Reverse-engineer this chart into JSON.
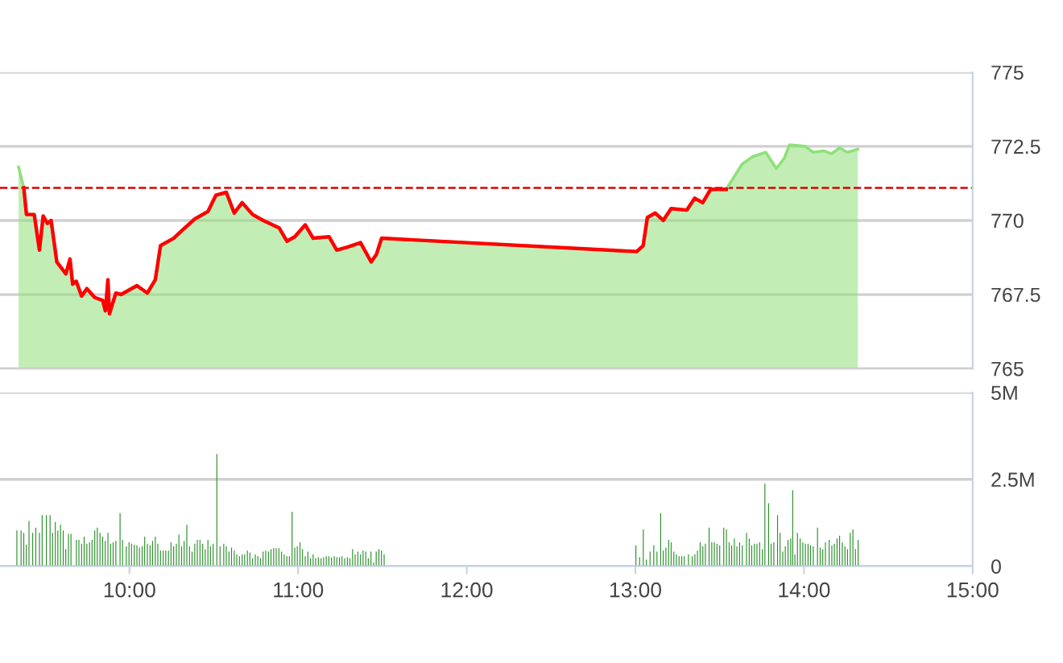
{
  "chart_data": [
    {
      "type": "area",
      "xlim": [
        9.232,
        15
      ],
      "ylim": [
        765,
        775
      ],
      "yticks": [
        765,
        767.5,
        770,
        772.5,
        775
      ],
      "tick_labels": "y",
      "grid": "y",
      "ref_lines": [
        {
          "axis": "y",
          "value": 771.1,
          "color": "#dd0000",
          "line_style": "dashed"
        }
      ],
      "series": [
        {
          "type": "area",
          "color": "#8fe07a",
          "x": [
            9.342,
            9.373,
            9.389,
            9.435,
            9.466,
            9.488,
            9.513,
            9.535,
            9.569,
            9.623,
            9.647,
            9.663,
            9.684,
            9.716,
            9.747,
            9.794,
            9.841,
            9.857,
            9.872,
            9.881,
            9.919,
            9.95,
            9.997,
            10.044,
            10.106,
            10.153,
            10.184,
            10.262,
            10.309,
            10.387,
            10.465,
            10.512,
            10.574,
            10.621,
            10.668,
            10.73,
            10.793,
            10.887,
            10.934,
            10.98,
            11.042,
            11.089,
            11.183,
            11.229,
            11.292,
            11.37,
            11.433,
            11.464,
            11.495,
            13.008,
            13.046,
            13.071,
            13.118,
            13.165,
            13.212,
            13.305,
            13.352,
            13.399,
            13.446,
            13.539,
            13.633,
            13.695,
            13.773,
            13.836,
            13.883,
            13.914,
            14.007,
            14.054,
            14.116,
            14.163,
            14.211,
            14.257,
            14.319
          ],
          "values": [
            771.8,
            771.1,
            770.2,
            770.2,
            769.0,
            770.15,
            769.9,
            770.0,
            768.6,
            768.2,
            768.7,
            767.85,
            767.95,
            767.45,
            767.7,
            767.4,
            767.3,
            766.95,
            768.0,
            766.85,
            767.55,
            767.5,
            767.65,
            767.8,
            767.55,
            768.0,
            769.15,
            769.4,
            769.65,
            770.05,
            770.3,
            770.85,
            770.95,
            770.25,
            770.6,
            770.2,
            770.0,
            769.75,
            769.3,
            769.45,
            769.85,
            769.4,
            769.45,
            769.0,
            769.1,
            769.25,
            768.6,
            768.85,
            769.4,
            768.95,
            769.15,
            770.1,
            770.25,
            770.0,
            770.4,
            770.35,
            770.75,
            770.6,
            771.05,
            771.05,
            771.9,
            772.15,
            772.3,
            771.75,
            772.1,
            772.55,
            772.5,
            772.3,
            772.35,
            772.25,
            772.45,
            772.3,
            772.4
          ]
        },
        {
          "type": "line",
          "color": "#ff0000",
          "x": [
            9.373,
            9.389,
            9.435,
            9.466,
            9.488,
            9.513,
            9.535,
            9.569,
            9.623,
            9.647,
            9.663,
            9.684,
            9.716,
            9.747,
            9.794,
            9.841,
            9.857,
            9.872,
            9.881,
            9.919,
            9.95,
            9.997,
            10.044,
            10.106,
            10.153,
            10.184,
            10.262,
            10.309,
            10.387,
            10.465,
            10.512,
            10.574,
            10.621,
            10.668,
            10.73,
            10.793,
            10.887,
            10.934,
            10.98,
            11.042,
            11.089,
            11.183,
            11.229,
            11.292,
            11.37,
            11.433,
            11.464,
            11.495,
            13.008,
            13.046,
            13.071,
            13.118,
            13.165,
            13.212,
            13.305,
            13.352,
            13.399,
            13.446,
            13.539
          ],
          "values": [
            771.1,
            770.2,
            770.2,
            769.0,
            770.15,
            769.9,
            770.0,
            768.6,
            768.2,
            768.7,
            767.85,
            767.95,
            767.45,
            767.7,
            767.4,
            767.3,
            766.95,
            768.0,
            766.85,
            767.55,
            767.5,
            767.65,
            767.8,
            767.55,
            768.0,
            769.15,
            769.4,
            769.65,
            770.05,
            770.3,
            770.85,
            770.95,
            770.25,
            770.6,
            770.2,
            770.0,
            769.75,
            769.3,
            769.45,
            769.85,
            769.4,
            769.45,
            769.0,
            769.1,
            769.25,
            768.6,
            768.85,
            769.4,
            768.95,
            769.15,
            770.1,
            770.25,
            770.0,
            770.4,
            770.35,
            770.75,
            770.6,
            771.05,
            771.05
          ]
        }
      ]
    },
    {
      "type": "bar",
      "xlim": [
        9.232,
        15
      ],
      "ylim": [
        0,
        5
      ],
      "yticks": [
        0,
        {
          "value": 2.5,
          "label": "2.5M"
        },
        {
          "value": 5,
          "label": "5M"
        }
      ],
      "xticks": [
        {
          "value": 10,
          "label": "10:00"
        },
        {
          "value": 11,
          "label": "11:00"
        },
        {
          "value": 12,
          "label": "12:00"
        },
        {
          "value": 13,
          "label": "13:00"
        },
        {
          "value": 14,
          "label": "14:00"
        },
        {
          "value": 15,
          "label": "15:00"
        }
      ],
      "grid": "y",
      "series": [
        {
          "color": "#2a8f2a",
          "x": [
            9.332,
            9.357,
            9.373,
            9.388,
            9.404,
            9.426,
            9.444,
            9.466,
            9.482,
            9.507,
            9.529,
            9.544,
            9.56,
            9.575,
            9.591,
            9.607,
            9.622,
            9.638,
            9.653,
            9.685,
            9.7,
            9.716,
            9.731,
            9.747,
            9.763,
            9.778,
            9.794,
            9.809,
            9.825,
            9.841,
            9.856,
            9.872,
            9.888,
            9.903,
            9.919,
            9.944,
            9.959,
            9.981,
            9.997,
            10.012,
            10.028,
            10.044,
            10.059,
            10.075,
            10.09,
            10.106,
            10.122,
            10.137,
            10.153,
            10.168,
            10.184,
            10.2,
            10.215,
            10.231,
            10.246,
            10.262,
            10.278,
            10.293,
            10.309,
            10.324,
            10.34,
            10.356,
            10.371,
            10.387,
            10.402,
            10.418,
            10.434,
            10.449,
            10.465,
            10.48,
            10.496,
            10.518,
            10.537,
            10.559,
            10.574,
            10.59,
            10.605,
            10.621,
            10.636,
            10.652,
            10.668,
            10.683,
            10.699,
            10.714,
            10.73,
            10.746,
            10.761,
            10.777,
            10.792,
            10.808,
            10.824,
            10.839,
            10.855,
            10.87,
            10.886,
            10.902,
            10.917,
            10.933,
            10.948,
            10.964,
            10.98,
            10.995,
            11.011,
            11.026,
            11.042,
            11.058,
            11.073,
            11.089,
            11.104,
            11.12,
            11.136,
            11.151,
            11.167,
            11.182,
            11.198,
            11.214,
            11.229,
            11.245,
            11.26,
            11.276,
            11.292,
            11.307,
            11.323,
            11.338,
            11.354,
            11.37,
            11.385,
            11.401,
            11.416,
            11.432,
            11.448,
            11.463,
            11.479,
            11.494,
            11.51,
            13.003,
            13.025,
            13.047,
            13.065,
            13.087,
            13.109,
            13.128,
            13.15,
            13.165,
            13.181,
            13.197,
            13.212,
            13.228,
            13.243,
            13.259,
            13.275,
            13.29,
            13.315,
            13.337,
            13.353,
            13.368,
            13.384,
            13.4,
            13.415,
            13.437,
            13.453,
            13.468,
            13.484,
            13.5,
            13.524,
            13.54,
            13.556,
            13.571,
            13.587,
            13.602,
            13.618,
            13.634,
            13.659,
            13.675,
            13.69,
            13.706,
            13.721,
            13.737,
            13.753,
            13.768,
            13.79,
            13.805,
            13.821,
            13.843,
            13.858,
            13.874,
            13.889,
            13.905,
            13.921,
            13.933,
            13.946,
            13.961,
            13.977,
            13.993,
            14.008,
            14.024,
            14.039,
            14.055,
            14.08,
            14.096,
            14.111,
            14.127,
            14.149,
            14.165,
            14.18,
            14.196,
            14.211,
            14.227,
            14.243,
            14.258,
            14.274,
            14.29,
            14.305,
            14.321
          ],
          "values": [
            1.03,
            1.03,
            0.96,
            0.62,
            1.3,
            0.96,
            1.11,
            0.96,
            1.47,
            1.47,
            1.47,
            0.96,
            1.27,
            1.03,
            1.19,
            1.03,
            0.49,
            0.93,
            0.93,
            0.76,
            0.76,
            0.65,
            0.85,
            0.65,
            0.69,
            0.76,
            1.03,
            1.11,
            0.96,
            0.85,
            0.73,
            0.96,
            0.65,
            0.69,
            0.73,
            1.53,
            0.76,
            0.57,
            0.69,
            0.65,
            0.62,
            0.6,
            0.54,
            0.57,
            0.85,
            0.65,
            0.6,
            0.73,
            0.85,
            0.65,
            0.45,
            0.45,
            0.45,
            0.45,
            0.69,
            0.57,
            0.65,
            0.91,
            0.57,
            0.73,
            1.19,
            0.57,
            0.42,
            0.65,
            0.76,
            0.76,
            0.65,
            0.49,
            0.76,
            0.57,
            0.65,
            3.23,
            0.57,
            0.65,
            0.57,
            0.42,
            0.54,
            0.45,
            0.34,
            0.29,
            0.34,
            0.34,
            0.45,
            0.39,
            0.23,
            0.34,
            0.29,
            0.23,
            0.42,
            0.45,
            0.42,
            0.49,
            0.52,
            0.52,
            0.52,
            0.42,
            0.34,
            0.29,
            0.29,
            1.57,
            0.54,
            0.57,
            0.69,
            0.49,
            0.29,
            0.42,
            0.23,
            0.34,
            0.23,
            0.26,
            0.23,
            0.26,
            0.29,
            0.29,
            0.26,
            0.29,
            0.26,
            0.26,
            0.29,
            0.23,
            0.26,
            0.23,
            0.49,
            0.34,
            0.42,
            0.34,
            0.45,
            0.42,
            0.23,
            0.42,
            0.11,
            0.42,
            0.49,
            0.45,
            0.34,
            0.6,
            0.26,
            1.06,
            0.19,
            0.42,
            0.6,
            0.42,
            1.53,
            0.45,
            0.54,
            0.76,
            0.69,
            0.42,
            0.34,
            0.29,
            0.29,
            0.29,
            0.34,
            0.29,
            0.34,
            0.45,
            0.69,
            0.57,
            0.65,
            1.11,
            0.69,
            0.69,
            0.65,
            0.6,
            1.11,
            1.06,
            0.69,
            0.6,
            0.8,
            0.57,
            0.69,
            0.6,
            0.96,
            0.8,
            0.6,
            0.65,
            0.65,
            0.69,
            0.49,
            2.38,
            1.81,
            0.65,
            0.69,
            1.47,
            0.96,
            0.42,
            0.57,
            0.76,
            0.8,
            2.19,
            0.34,
            0.96,
            0.8,
            0.69,
            0.65,
            0.65,
            0.6,
            0.57,
            1.11,
            0.54,
            0.49,
            0.69,
            0.76,
            0.6,
            0.65,
            0.8,
            0.88,
            0.69,
            0.57,
            0.49,
            0.96,
            1.06,
            0.49,
            0.76
          ]
        }
      ]
    }
  ]
}
